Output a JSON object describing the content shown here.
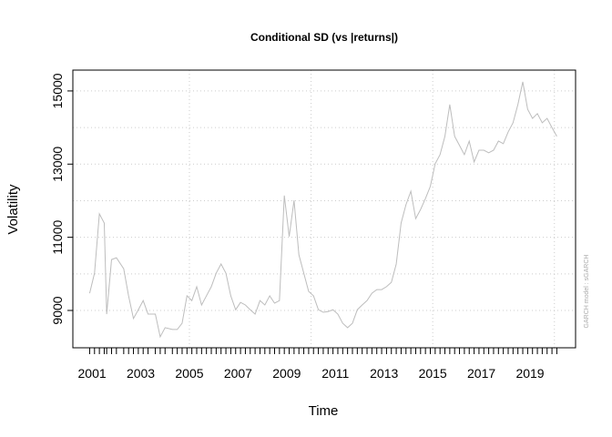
{
  "chart_data": {
    "type": "line",
    "title": "Conditional SD (vs |returns|)",
    "xlabel": "Time",
    "ylabel": "Volatility",
    "side_note": "GARCH model : sGARCH",
    "x": [
      2000.9,
      2001.1,
      2001.3,
      2001.5,
      2001.6,
      2001.8,
      2002.0,
      2002.3,
      2002.5,
      2002.7,
      2002.9,
      2003.1,
      2003.3,
      2003.6,
      2003.8,
      2004.0,
      2004.3,
      2004.5,
      2004.7,
      2004.9,
      2005.1,
      2005.3,
      2005.5,
      2005.7,
      2005.9,
      2006.1,
      2006.3,
      2006.5,
      2006.7,
      2006.9,
      2007.1,
      2007.3,
      2007.5,
      2007.7,
      2007.9,
      2008.1,
      2008.3,
      2008.5,
      2008.7,
      2008.9,
      2009.1,
      2009.3,
      2009.5,
      2009.7,
      2009.9,
      2010.1,
      2010.3,
      2010.5,
      2010.7,
      2010.9,
      2011.1,
      2011.3,
      2011.5,
      2011.7,
      2011.9,
      2012.1,
      2012.3,
      2012.5,
      2012.7,
      2012.9,
      2013.1,
      2013.3,
      2013.5,
      2013.7,
      2013.9,
      2014.1,
      2014.3,
      2014.5,
      2014.7,
      2014.9,
      2015.1,
      2015.3,
      2015.5,
      2015.7,
      2015.9,
      2016.1,
      2016.3,
      2016.5,
      2016.7,
      2016.9,
      2017.1,
      2017.3,
      2017.5,
      2017.7,
      2017.9,
      2018.1,
      2018.3,
      2018.5,
      2018.7,
      2018.9,
      2019.1,
      2019.3,
      2019.5,
      2019.7,
      2019.9,
      2020.1
    ],
    "series": [
      {
        "color": "#bdbdbd",
        "values": [
          9470,
          10020,
          11640,
          11390,
          8900,
          10390,
          10440,
          10140,
          9400,
          8780,
          9020,
          9270,
          8900,
          8900,
          8280,
          8530,
          8480,
          8480,
          8650,
          9400,
          9270,
          9650,
          9150,
          9400,
          9650,
          10020,
          10270,
          10020,
          9400,
          9020,
          9220,
          9150,
          9020,
          8900,
          9270,
          9150,
          9400,
          9200,
          9270,
          12140,
          11020,
          12010,
          10520,
          10020,
          9520,
          9400,
          9020,
          8950,
          8970,
          9020,
          8900,
          8650,
          8530,
          8650,
          9020,
          9150,
          9270,
          9470,
          9570,
          9570,
          9650,
          9770,
          10270,
          11390,
          11890,
          12260,
          11510,
          11760,
          12060,
          12390,
          13010,
          13260,
          13760,
          14630,
          13760,
          13510,
          13260,
          13630,
          13060,
          13380,
          13380,
          13310,
          13380,
          13630,
          13560,
          13880,
          14130,
          14630,
          15250,
          14500,
          14250,
          14380,
          14130,
          14250,
          14000,
          13760
        ]
      }
    ],
    "xlim": [
      2000.21,
      2020.87
    ],
    "ylim": [
      7980,
      15570
    ],
    "xticks": [
      2001,
      2003,
      2005,
      2007,
      2009,
      2011,
      2013,
      2015,
      2017,
      2019
    ],
    "yticks": [
      9000,
      11000,
      13000,
      15000
    ],
    "xgrid": [
      2005,
      2010,
      2015,
      2020
    ],
    "ygrid": [
      9000,
      10000,
      11000,
      12000,
      13000,
      14000,
      15000
    ],
    "grid": true
  }
}
